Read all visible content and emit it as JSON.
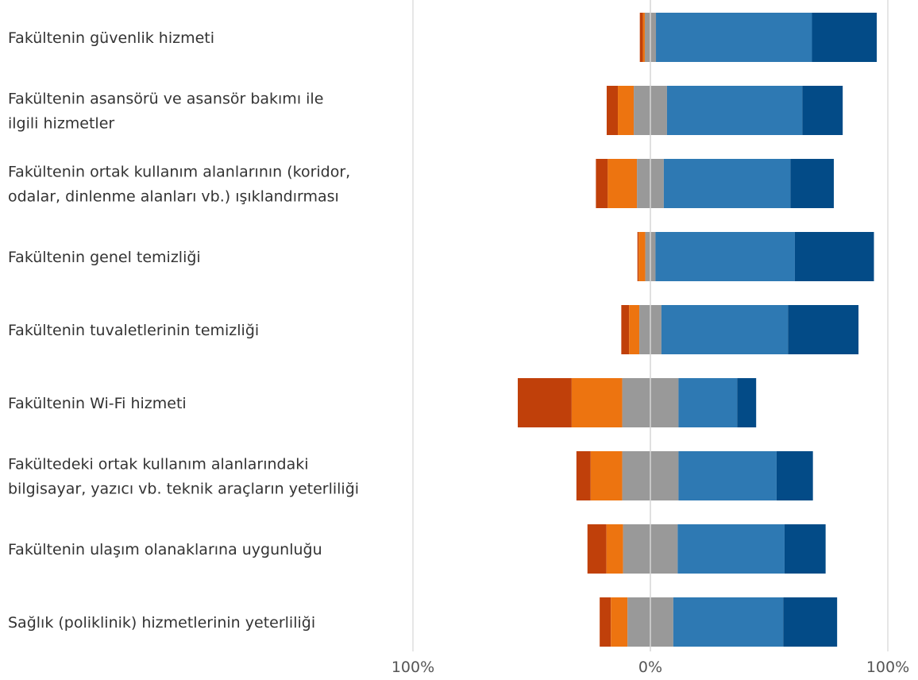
{
  "chart_data": {
    "type": "bar",
    "orientation": "horizontal",
    "stacked": true,
    "diverging": true,
    "categories": [
      [
        "Fakültenin güvenlik hizmeti"
      ],
      [
        "Fakültenin asansörü ve asansör bakımı ile",
        "ilgili hizmetler"
      ],
      [
        "Fakültenin ortak kullanım alanlarının (koridor,",
        "odalar, dinlenme alanları vb.) ışıklandırması"
      ],
      [
        "Fakültenin genel temizliği"
      ],
      [
        "Fakültenin tuvaletlerinin temizliği"
      ],
      [
        "Fakültenin Wi-Fi hizmeti"
      ],
      [
        "Fakültedeki ortak kullanım alanlarındaki",
        "bilgisayar, yazıcı vb. teknik araçların yeterliliği"
      ],
      [
        "Fakültenin ulaşım olanaklarına uygunluğu"
      ],
      [
        "Sağlık (poliklinik) hizmetlerinin yeterliliği"
      ]
    ],
    "series": [
      {
        "color": "#c0400a",
        "values": [
          1.3,
          4.7,
          5.0,
          0.5,
          3.3,
          22.7,
          6.0,
          8.0,
          4.7
        ]
      },
      {
        "color": "#ed7410",
        "values": [
          0.8,
          6.7,
          12.3,
          2.8,
          4.3,
          21.3,
          13.3,
          7.0,
          7.0
        ]
      },
      {
        "color": "#999999",
        "values": [
          4.7,
          14.0,
          11.3,
          4.3,
          9.3,
          23.7,
          23.7,
          23.0,
          19.3
        ]
      },
      {
        "color": "#2e79b3",
        "values": [
          65.7,
          57.0,
          53.3,
          58.7,
          53.3,
          24.7,
          41.3,
          45.0,
          46.3
        ]
      },
      {
        "color": "#034b87",
        "values": [
          27.3,
          17.0,
          18.3,
          33.3,
          29.7,
          8.0,
          15.3,
          17.3,
          22.7
        ]
      }
    ],
    "xlim": [
      -100,
      100
    ],
    "x_ticks": [
      "100%",
      "0%",
      "100%"
    ],
    "legend": "none",
    "grid": false
  }
}
